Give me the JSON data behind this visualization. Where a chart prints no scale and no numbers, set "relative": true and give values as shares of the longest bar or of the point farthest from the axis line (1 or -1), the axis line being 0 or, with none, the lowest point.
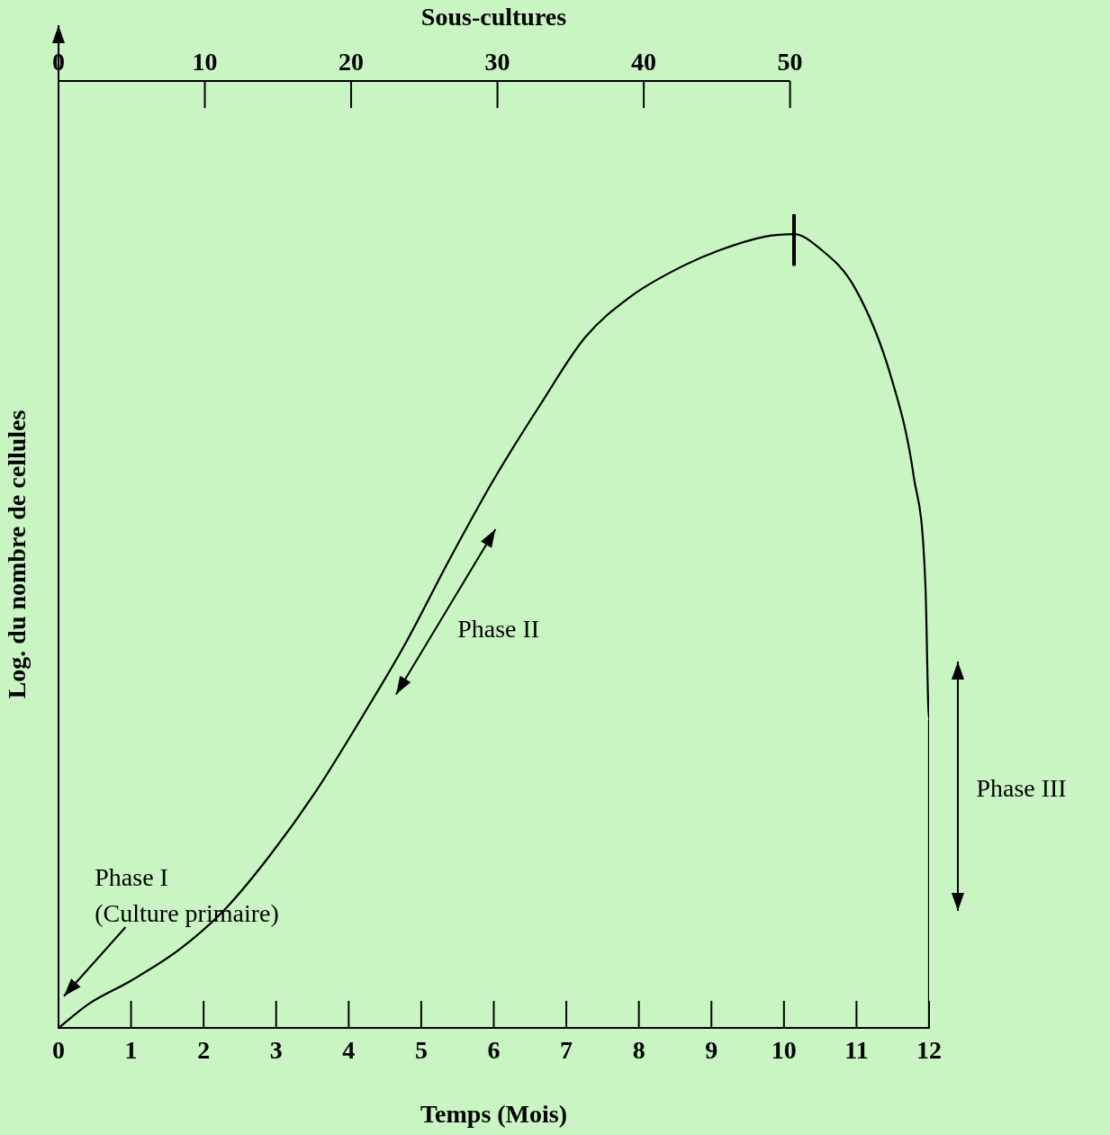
{
  "chart_data": {
    "type": "line",
    "relative": true,
    "xlabel": "Temps (Mois)",
    "ylabel": "Log. du nombre de cellules",
    "x2label": "Sous-cultures",
    "xlim": [
      0,
      12
    ],
    "xticks": [
      0,
      1,
      2,
      3,
      4,
      5,
      6,
      7,
      8,
      9,
      10,
      11,
      12
    ],
    "x2lim": [
      0,
      59.5
    ],
    "x2ticks": [
      0,
      10,
      20,
      30,
      40,
      50
    ],
    "x": [
      0,
      0.43,
      0.99,
      1.67,
      2.3,
      2.92,
      3.54,
      4.16,
      4.78,
      5.4,
      6.02,
      6.64,
      7.26,
      7.88,
      8.5,
      9.12,
      9.74,
      10.14,
      10.48,
      10.98,
      11.48,
      11.79,
      11.95,
      12.0,
      12.0,
      12.0
    ],
    "series": [
      {
        "color": "#000000",
        "values": [
          0,
          0.031,
          0.059,
          0.099,
          0.15,
          0.218,
          0.297,
          0.388,
          0.484,
          0.592,
          0.694,
          0.785,
          0.87,
          0.921,
          0.955,
          0.98,
          0.997,
          1.0,
          0.983,
          0.932,
          0.819,
          0.694,
          0.558,
          0.388,
          0.16,
          0
        ]
      }
    ],
    "annotations": [
      "Phase I\n(Culture primaire)",
      "Phase II",
      "Phase III"
    ],
    "grid": false,
    "legend": false,
    "marker": "none",
    "line_style": "solid"
  }
}
